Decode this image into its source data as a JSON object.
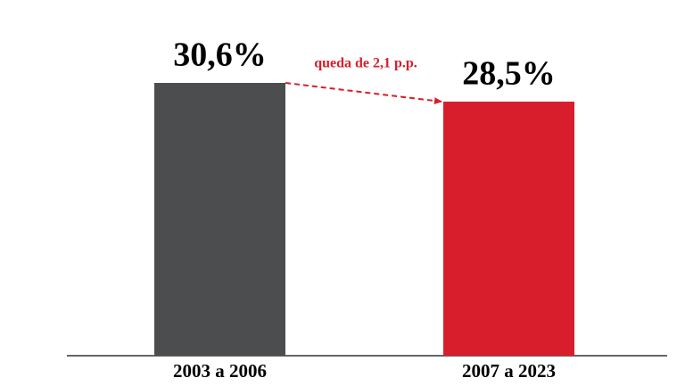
{
  "chart_data": {
    "type": "bar",
    "categories": [
      "2003 a 2006",
      "2007 a 2023"
    ],
    "values": [
      30.6,
      28.5
    ],
    "value_labels": [
      "30,6%",
      "28,5%"
    ],
    "colors": [
      "#4b4d4f",
      "#d81e2c"
    ],
    "annotation": "queda de 2,1 p.p.",
    "annotation_color": "#d81e2c"
  }
}
